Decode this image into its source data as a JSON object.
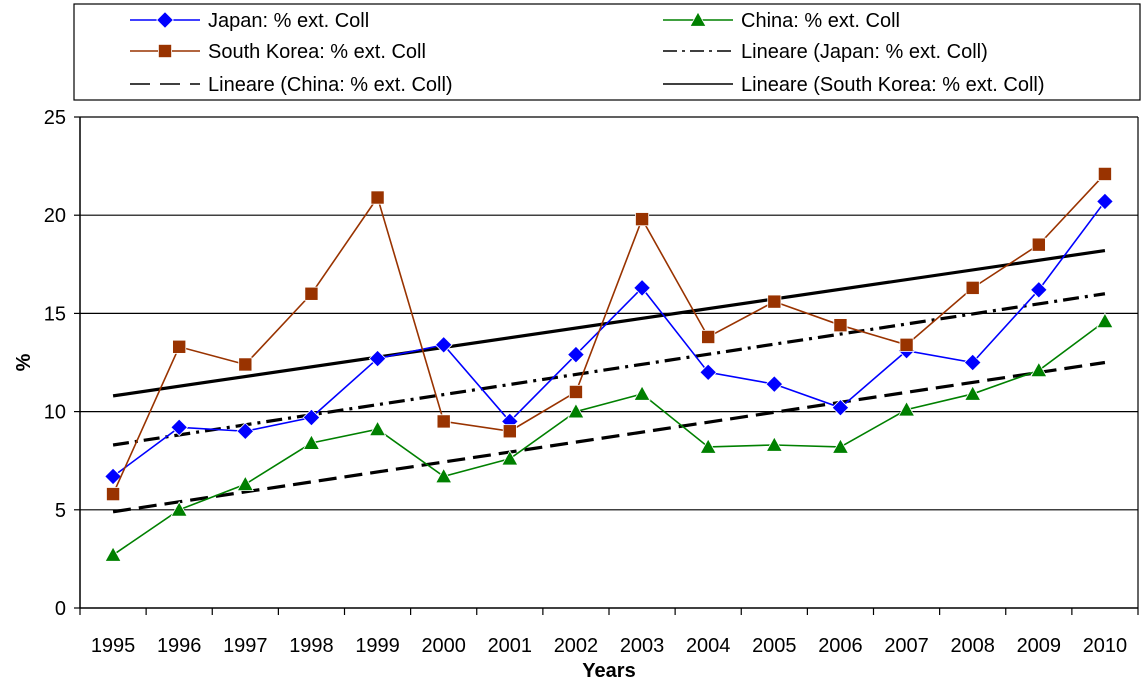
{
  "chart_data": {
    "type": "line",
    "title": "",
    "xlabel": "Years",
    "ylabel": "%",
    "ylim": [
      0,
      25
    ],
    "yticks": [
      0,
      5,
      10,
      15,
      20,
      25
    ],
    "grid": "horizontal",
    "legend_position": "top",
    "categories": [
      "1995",
      "1996",
      "1997",
      "1998",
      "1999",
      "2000",
      "2001",
      "2002",
      "2003",
      "2004",
      "2005",
      "2006",
      "2007",
      "2008",
      "2009",
      "2010"
    ],
    "series": [
      {
        "name": "Japan: % ext. Coll",
        "color": "#0000FF",
        "marker": "diamond",
        "marker_color": "#0000FF",
        "values": [
          6.7,
          9.2,
          9.0,
          9.7,
          12.7,
          13.4,
          9.5,
          12.9,
          16.3,
          12.0,
          11.4,
          10.2,
          13.1,
          12.5,
          16.2,
          20.7
        ]
      },
      {
        "name": "China: % ext. Coll",
        "color": "#008000",
        "marker": "triangle",
        "marker_color": "#008000",
        "values": [
          2.7,
          5.0,
          6.3,
          8.4,
          9.1,
          6.7,
          7.6,
          10.0,
          10.9,
          8.2,
          8.3,
          8.2,
          10.1,
          10.9,
          12.1,
          14.6
        ]
      },
      {
        "name": "South Korea: % ext. Coll",
        "color": "#993300",
        "marker": "square",
        "marker_color": "#993300",
        "values": [
          5.8,
          13.3,
          12.4,
          16.0,
          20.9,
          9.5,
          9.0,
          11.0,
          19.8,
          13.8,
          15.6,
          14.4,
          13.4,
          16.3,
          18.5,
          22.1
        ]
      }
    ],
    "trendlines": [
      {
        "name": "Lineare (Japan: % ext. Coll)",
        "style": "dashdot",
        "color": "#000000",
        "start": 8.3,
        "end": 16.0
      },
      {
        "name": "Lineare (China: % ext. Coll)",
        "style": "dash",
        "color": "#000000",
        "start": 4.9,
        "end": 12.5
      },
      {
        "name": "Lineare (South Korea: % ext. Coll)",
        "style": "solid",
        "color": "#000000",
        "start": 10.8,
        "end": 18.2
      }
    ],
    "legend": [
      {
        "label": "Japan: % ext. Coll",
        "ref": "series",
        "index": 0
      },
      {
        "label": "China: % ext. Coll",
        "ref": "series",
        "index": 1
      },
      {
        "label": "South Korea: % ext. Coll",
        "ref": "series",
        "index": 2
      },
      {
        "label": "Lineare (Japan: % ext. Coll)",
        "ref": "trend",
        "index": 0
      },
      {
        "label": "Lineare (China: % ext. Coll)",
        "ref": "trend",
        "index": 1
      },
      {
        "label": "Lineare (South Korea: % ext. Coll)",
        "ref": "trend",
        "index": 2
      }
    ]
  }
}
